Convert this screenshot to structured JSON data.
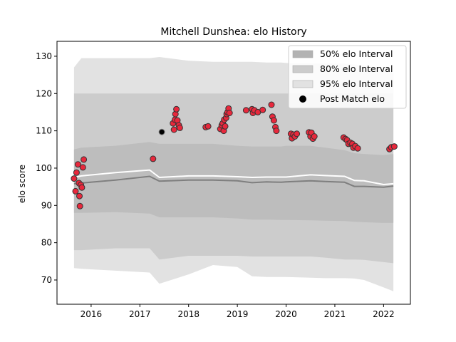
{
  "chart_data": {
    "type": "scatter",
    "title": "Mitchell Dunshea: elo History",
    "xlabel": "",
    "ylabel": "elo score",
    "xlim": [
      2015.3,
      2022.55
    ],
    "ylim": [
      63.5,
      134
    ],
    "xticks": [
      2016,
      2017,
      2018,
      2019,
      2020,
      2021,
      2022
    ],
    "yticks": [
      70,
      80,
      90,
      100,
      110,
      120,
      130
    ],
    "grid": false,
    "legend_position": "top-right",
    "legend": [
      {
        "label": "50% elo Interval",
        "kind": "band",
        "color": "#b3b3b3"
      },
      {
        "label": "80% elo Interval",
        "kind": "band",
        "color": "#cccccc"
      },
      {
        "label": "95% elo Interval",
        "kind": "band",
        "color": "#e2e2e2"
      },
      {
        "label": "Post Match elo",
        "kind": "marker",
        "color": "#000000"
      }
    ],
    "colors": {
      "band_95": "#e2e2e2",
      "band_80": "#cccccc",
      "band_50": "#bdbdbd",
      "median_line": "#7f7f7f",
      "mean_line": "#ffffff",
      "point_fill": "#e8283c",
      "point_edge": "#333333",
      "highlight_point_fill": "#000000"
    },
    "band_x": [
      2015.65,
      2015.8,
      2016.5,
      2017.2,
      2017.4,
      2018.0,
      2018.5,
      2019.0,
      2019.3,
      2019.6,
      2019.9,
      2020.0,
      2020.5,
      2020.8,
      2021.2,
      2021.4,
      2021.6,
      2022.0,
      2022.2
    ],
    "bands": {
      "p95_upper": [
        127,
        129.5,
        129.5,
        129.5,
        129.8,
        128.8,
        128.5,
        128.5,
        128.5,
        128.3,
        128.3,
        128.2,
        128.1,
        128,
        128,
        127.8,
        127.5,
        126.5,
        125.5
      ],
      "p80_upper": [
        120,
        120,
        120,
        120,
        120,
        120,
        120,
        120,
        120,
        120,
        120,
        120,
        120,
        120,
        120,
        120,
        120,
        120,
        120
      ],
      "p50_upper": [
        105,
        105.5,
        106,
        107,
        106.5,
        106.5,
        106.5,
        106,
        105.8,
        105.8,
        105.8,
        106,
        106,
        105.5,
        104.8,
        104,
        103.8,
        103.5,
        103.8
      ],
      "median": [
        95.8,
        96,
        96.8,
        97.8,
        96.5,
        96.8,
        96.8,
        96.6,
        96.1,
        96.3,
        96.2,
        96.3,
        96.6,
        96.4,
        96.2,
        95.1,
        95.1,
        94.9,
        95.2
      ],
      "mean": [
        97.5,
        97.9,
        98.8,
        99.5,
        97.5,
        97.9,
        97.9,
        97.7,
        97.5,
        97.6,
        97.6,
        97.6,
        98.2,
        98,
        97.8,
        96.7,
        96.6,
        95.6,
        95.8
      ],
      "p50_lower": [
        88,
        88,
        88.2,
        87.8,
        86.8,
        86.8,
        86.8,
        86.5,
        86.2,
        86.2,
        86.1,
        86.1,
        86,
        85.9,
        85.8,
        85.6,
        85.5,
        85.3,
        85.3
      ],
      "p80_lower": [
        78,
        78,
        78.5,
        78.5,
        75.5,
        76.5,
        76.5,
        76.5,
        76.3,
        76.3,
        76.3,
        76.3,
        76.3,
        76,
        75.5,
        75.5,
        75.4,
        74.8,
        74.5
      ],
      "p95_lower": [
        73.2,
        73,
        72.5,
        72,
        69,
        71.5,
        74,
        73.5,
        71,
        70.8,
        70.8,
        70.8,
        70.6,
        70.5,
        70.5,
        70.4,
        70,
        68,
        67
      ]
    },
    "points": [
      {
        "x": 2015.65,
        "y": 97.2
      },
      {
        "x": 2015.68,
        "y": 93.8
      },
      {
        "x": 2015.7,
        "y": 98.8
      },
      {
        "x": 2015.73,
        "y": 101
      },
      {
        "x": 2015.75,
        "y": 96
      },
      {
        "x": 2015.76,
        "y": 92.5
      },
      {
        "x": 2015.77,
        "y": 89.8
      },
      {
        "x": 2015.79,
        "y": 95.5
      },
      {
        "x": 2015.81,
        "y": 94.8
      },
      {
        "x": 2015.83,
        "y": 100.2
      },
      {
        "x": 2015.85,
        "y": 102.3
      },
      {
        "x": 2017.27,
        "y": 102.5
      },
      {
        "x": 2017.45,
        "y": 109.7,
        "highlight": true
      },
      {
        "x": 2017.68,
        "y": 112
      },
      {
        "x": 2017.7,
        "y": 110.3
      },
      {
        "x": 2017.72,
        "y": 113
      },
      {
        "x": 2017.73,
        "y": 114.5
      },
      {
        "x": 2017.75,
        "y": 115.8
      },
      {
        "x": 2017.77,
        "y": 112.8
      },
      {
        "x": 2017.8,
        "y": 111.5
      },
      {
        "x": 2017.82,
        "y": 110.8
      },
      {
        "x": 2018.35,
        "y": 111
      },
      {
        "x": 2018.4,
        "y": 111.2
      },
      {
        "x": 2018.65,
        "y": 110.5
      },
      {
        "x": 2018.68,
        "y": 111.5
      },
      {
        "x": 2018.7,
        "y": 112
      },
      {
        "x": 2018.72,
        "y": 110
      },
      {
        "x": 2018.73,
        "y": 113
      },
      {
        "x": 2018.75,
        "y": 111.2
      },
      {
        "x": 2018.77,
        "y": 113.5
      },
      {
        "x": 2018.78,
        "y": 114.5
      },
      {
        "x": 2018.8,
        "y": 115
      },
      {
        "x": 2018.82,
        "y": 116
      },
      {
        "x": 2018.84,
        "y": 114.8
      },
      {
        "x": 2019.18,
        "y": 115.5
      },
      {
        "x": 2019.3,
        "y": 115.8
      },
      {
        "x": 2019.32,
        "y": 114.8
      },
      {
        "x": 2019.35,
        "y": 115.5
      },
      {
        "x": 2019.42,
        "y": 115
      },
      {
        "x": 2019.52,
        "y": 115.6
      },
      {
        "x": 2019.7,
        "y": 117
      },
      {
        "x": 2019.72,
        "y": 113.8
      },
      {
        "x": 2019.75,
        "y": 112.8
      },
      {
        "x": 2019.78,
        "y": 111
      },
      {
        "x": 2019.8,
        "y": 110
      },
      {
        "x": 2020.1,
        "y": 109.2
      },
      {
        "x": 2020.12,
        "y": 108
      },
      {
        "x": 2020.15,
        "y": 109
      },
      {
        "x": 2020.18,
        "y": 108.5
      },
      {
        "x": 2020.22,
        "y": 109.2
      },
      {
        "x": 2020.47,
        "y": 109.6
      },
      {
        "x": 2020.5,
        "y": 108.5
      },
      {
        "x": 2020.52,
        "y": 109.5
      },
      {
        "x": 2020.55,
        "y": 107.9
      },
      {
        "x": 2020.58,
        "y": 108.5
      },
      {
        "x": 2021.18,
        "y": 108.2
      },
      {
        "x": 2021.22,
        "y": 107.8
      },
      {
        "x": 2021.25,
        "y": 107.5
      },
      {
        "x": 2021.28,
        "y": 106.5
      },
      {
        "x": 2021.32,
        "y": 106.8
      },
      {
        "x": 2021.36,
        "y": 106.5
      },
      {
        "x": 2021.38,
        "y": 105.5
      },
      {
        "x": 2021.42,
        "y": 105.9
      },
      {
        "x": 2021.47,
        "y": 105.3
      },
      {
        "x": 2022.12,
        "y": 105.1
      },
      {
        "x": 2022.16,
        "y": 105.6
      },
      {
        "x": 2022.22,
        "y": 105.8
      }
    ]
  }
}
